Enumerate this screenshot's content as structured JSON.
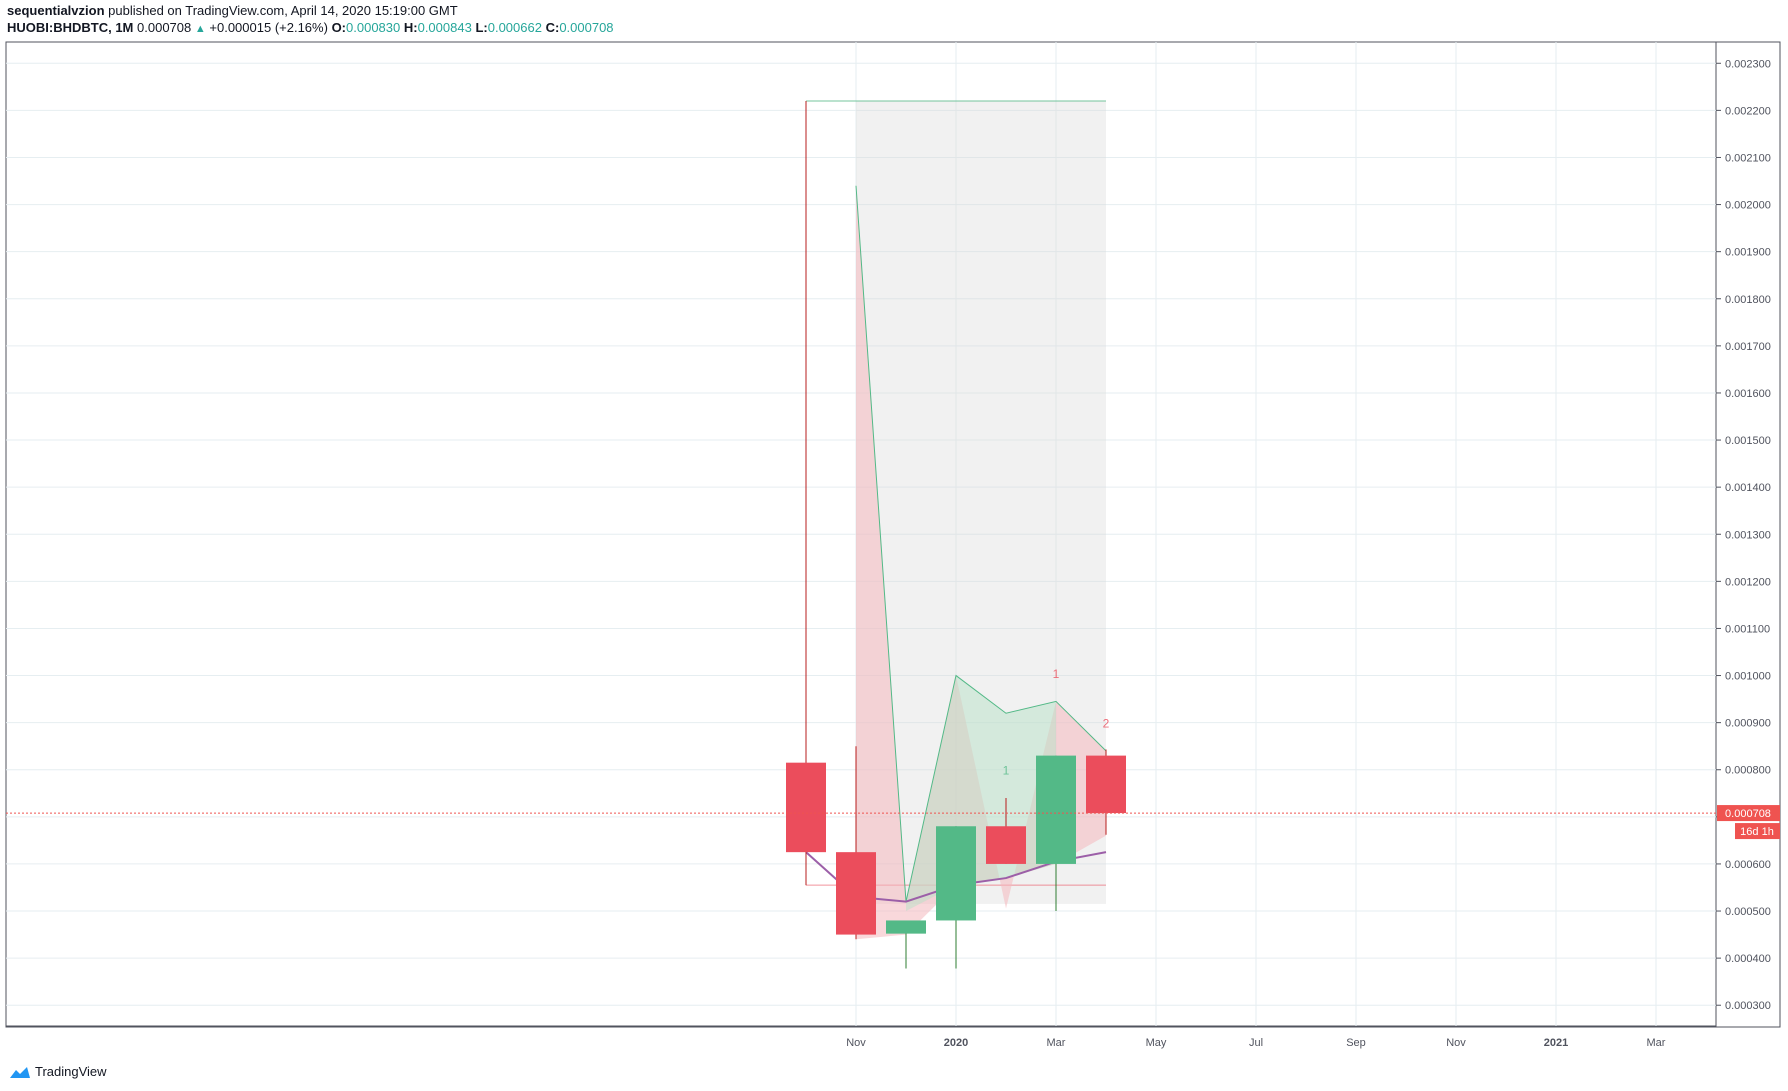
{
  "header": {
    "author": "sequentialvzion",
    "published": "published on TradingView.com, April 14, 2020 15:19:00 GMT",
    "symbol": "HUOBI:BHDBTC, 1M",
    "last": "0.000708",
    "change": "+0.000015 (+2.16%)",
    "open_label": "O:",
    "open": "0.000830",
    "high_label": "H:",
    "high": "0.000843",
    "low_label": "L:",
    "low": "0.000662",
    "close_label": "C:",
    "close": "0.000708"
  },
  "footer": {
    "brand": "TradingView"
  },
  "colors": {
    "up": "#53b987",
    "down": "#eb4d5c",
    "ma": "#9c5fa8",
    "price_line": "#ef5350",
    "grid": "#e6eef1",
    "label_bg": "#ef5350"
  },
  "chart_data": {
    "type": "candlestick",
    "y_ticks": [
      "0.002300",
      "0.002200",
      "0.002100",
      "0.002000",
      "0.001900",
      "0.001800",
      "0.001700",
      "0.001600",
      "0.001500",
      "0.001400",
      "0.001300",
      "0.001200",
      "0.001100",
      "0.001000",
      "0.000900",
      "0.000800",
      "0.000700",
      "0.000600",
      "0.000500",
      "0.000400",
      "0.000300"
    ],
    "ylim": [
      0.000275,
      0.002325
    ],
    "x_labels": [
      "Nov",
      "2020",
      "Mar",
      "May",
      "Jul",
      "Sep",
      "Nov",
      "2021",
      "Mar"
    ],
    "x_label_bold": [
      "2020",
      "2021"
    ],
    "last_price_label": "0.000708",
    "countdown_label": "16d 1h",
    "candles": [
      {
        "period": "2019-10",
        "open": 0.000815,
        "high": 0.00222,
        "low": 0.000555,
        "close": 0.000625
      },
      {
        "period": "2019-11",
        "open": 0.000625,
        "high": 0.00085,
        "low": 0.00044,
        "close": 0.00045
      },
      {
        "period": "2019-12",
        "open": 0.000452,
        "high": 0.00048,
        "low": 0.000378,
        "close": 0.00048
      },
      {
        "period": "2020-01",
        "open": 0.00048,
        "high": 0.00068,
        "low": 0.000378,
        "close": 0.00068
      },
      {
        "period": "2020-02",
        "open": 0.00068,
        "high": 0.00074,
        "low": 0.0006,
        "close": 0.0006
      },
      {
        "period": "2020-03",
        "open": 0.0006,
        "high": 0.00083,
        "low": 0.0005,
        "close": 0.00083
      },
      {
        "period": "2020-04",
        "open": 0.00083,
        "high": 0.000843,
        "low": 0.000662,
        "close": 0.000708
      }
    ],
    "ma_line": [
      0.000625,
      0.00053,
      0.00052,
      0.000555,
      0.00057,
      0.000605,
      0.000625
    ],
    "sequential_counts": [
      {
        "period": "2020-02",
        "label": "1",
        "value": 0.00079,
        "color": "#53b987"
      },
      {
        "period": "2020-03",
        "label": "1",
        "value": 0.000995,
        "color": "#eb4d5c"
      },
      {
        "period": "2020-04",
        "label": "2",
        "value": 0.00089,
        "color": "#eb4d5c"
      }
    ]
  }
}
